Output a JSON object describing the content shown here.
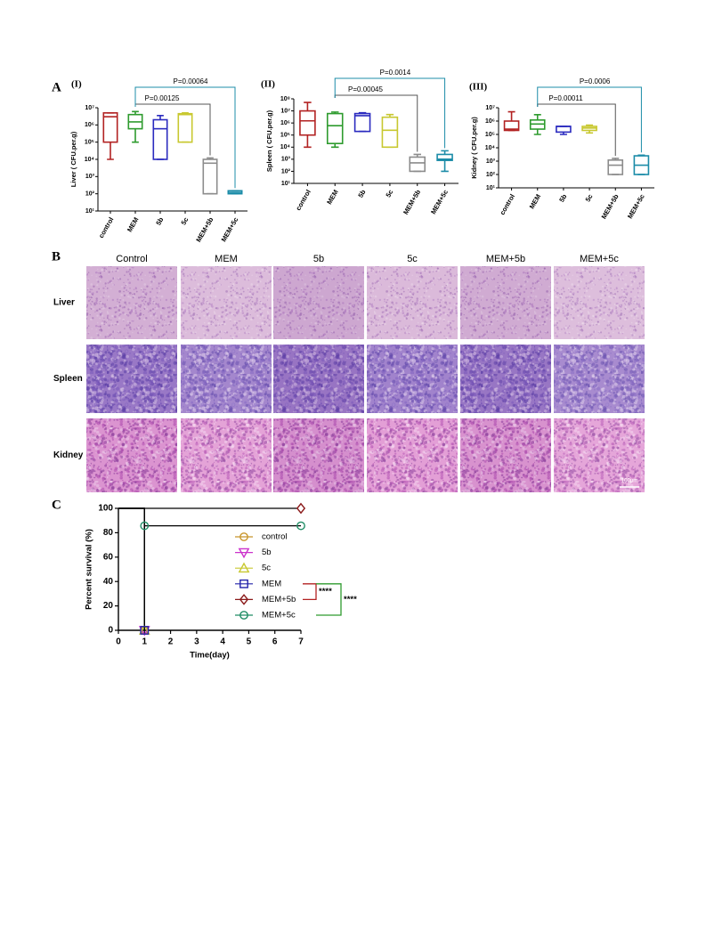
{
  "panel_labels": [
    "A",
    "B",
    "C"
  ],
  "chart_data": [
    {
      "type": "box",
      "title": "(I)",
      "y_label": "Liver ( CFU.per.g)",
      "log_scale": true,
      "categories": [
        "control",
        "MEM",
        "5b",
        "5c",
        "MEM+5b",
        "MEM+5c"
      ],
      "colors": [
        "#b22222",
        "#2e9b2e",
        "#2b2bbf",
        "#c8c830",
        "#8c8c8c",
        "#1c8ca8"
      ],
      "min": [
        10000,
        100000,
        10000,
        100000,
        100,
        100
      ],
      "q1": [
        100000,
        600000,
        10000,
        100000,
        100,
        100
      ],
      "median": [
        3000000,
        1500000,
        600000,
        4000000,
        6000,
        120
      ],
      "q3": [
        5000000,
        4000000,
        2000000,
        4500000,
        10000,
        150
      ],
      "max": [
        5000000,
        6000000,
        3500000,
        5000000,
        12000,
        150
      ],
      "ylim": [
        10,
        10000000
      ],
      "yticks": [
        {
          "value": 10,
          "label": "10¹"
        },
        {
          "value": 100,
          "label": "10²"
        },
        {
          "value": 1000,
          "label": "10³"
        },
        {
          "value": 10000,
          "label": "10⁴"
        },
        {
          "value": 100000,
          "label": "10⁵"
        },
        {
          "value": 1000000,
          "label": "10⁶"
        },
        {
          "value": 10000000,
          "label": "10⁷"
        }
      ],
      "annotations": [
        {
          "text": "P=0.00125",
          "from": "MEM",
          "to": "MEM+5b"
        },
        {
          "text": "P=0.00064",
          "from": "MEM",
          "to": "MEM+5c"
        }
      ]
    },
    {
      "type": "box",
      "title": "(II)",
      "y_label": "Spleen ( CFU.per.g)",
      "log_scale": true,
      "categories": [
        "control",
        "MEM",
        "5b",
        "5c",
        "MEM+5b",
        "MEM+5c"
      ],
      "colors": [
        "#b22222",
        "#2e9b2e",
        "#2b2bbf",
        "#c8c830",
        "#8c8c8c",
        "#1c8ca8"
      ],
      "min": [
        10000,
        10000,
        200000,
        10000,
        100,
        100
      ],
      "q1": [
        100000,
        20000,
        200000,
        10000,
        100,
        800
      ],
      "median": [
        1500000,
        600000,
        4000000,
        250000,
        500,
        1000
      ],
      "q3": [
        10000000,
        6000000,
        6000000,
        3000000,
        1500,
        2500
      ],
      "max": [
        50000000,
        8000000,
        7000000,
        5000000,
        2500,
        5000
      ],
      "ylim": [
        10,
        100000000
      ],
      "yticks": [
        {
          "value": 10,
          "label": "10¹"
        },
        {
          "value": 100,
          "label": "10²"
        },
        {
          "value": 1000,
          "label": "10³"
        },
        {
          "value": 10000,
          "label": "10⁴"
        },
        {
          "value": 100000,
          "label": "10⁵"
        },
        {
          "value": 1000000,
          "label": "10⁶"
        },
        {
          "value": 10000000,
          "label": "10⁷"
        },
        {
          "value": 100000000,
          "label": "10⁸"
        }
      ],
      "annotations": [
        {
          "text": "P=0.00045",
          "from": "MEM",
          "to": "MEM+5b"
        },
        {
          "text": "P=0.0014",
          "from": "MEM",
          "to": "MEM+5c"
        }
      ]
    },
    {
      "type": "box",
      "title": "(III)",
      "y_label": "Kidney ( CFU.per.g)",
      "log_scale": true,
      "categories": [
        "control",
        "MEM",
        "5b",
        "5c",
        "MEM+5b",
        "MEM+5c"
      ],
      "colors": [
        "#b22222",
        "#2e9b2e",
        "#2b2bbf",
        "#c8c830",
        "#8c8c8c",
        "#1c8ca8"
      ],
      "min": [
        200000,
        100000,
        100000,
        130000,
        100,
        100
      ],
      "q1": [
        200000,
        250000,
        150000,
        200000,
        100,
        100
      ],
      "median": [
        250000,
        600000,
        400000,
        300000,
        500,
        500
      ],
      "q3": [
        1000000,
        1200000,
        400000,
        400000,
        1200,
        2500
      ],
      "max": [
        5000000,
        3000000,
        400000,
        500000,
        1600,
        2800
      ],
      "ylim": [
        10,
        10000000
      ],
      "yticks": [
        {
          "value": 10,
          "label": "10¹"
        },
        {
          "value": 100,
          "label": "10²"
        },
        {
          "value": 1000,
          "label": "10³"
        },
        {
          "value": 10000,
          "label": "10⁴"
        },
        {
          "value": 100000,
          "label": "10⁵"
        },
        {
          "value": 1000000,
          "label": "10⁶"
        },
        {
          "value": 10000000,
          "label": "10⁷"
        }
      ],
      "annotations": [
        {
          "text": "P=0.00011",
          "from": "MEM",
          "to": "MEM+5b"
        },
        {
          "text": "P=0.0006",
          "from": "MEM",
          "to": "MEM+5c"
        }
      ]
    },
    {
      "type": "line",
      "step": true,
      "x_label": "Time(day)",
      "y_label": "Percent survival (%)",
      "xlim": [
        0,
        7
      ],
      "xticks": [
        0,
        1,
        2,
        3,
        4,
        5,
        6,
        7
      ],
      "ylim": [
        0,
        100
      ],
      "yticks": [
        0,
        20,
        40,
        60,
        80,
        100
      ],
      "series": [
        {
          "name": "control",
          "color": "#c8952a",
          "marker": "circle",
          "x": [
            0,
            1
          ],
          "values": [
            100,
            0
          ]
        },
        {
          "name": "5b",
          "color": "#cc33cc",
          "marker": "triangle-down",
          "x": [
            0,
            1
          ],
          "values": [
            100,
            0
          ]
        },
        {
          "name": "5c",
          "color": "#c8c830",
          "marker": "triangle-up",
          "x": [
            0,
            1
          ],
          "values": [
            100,
            0
          ]
        },
        {
          "name": "MEM",
          "color": "#2222aa",
          "marker": "square",
          "x": [
            0,
            1
          ],
          "values": [
            100,
            0
          ]
        },
        {
          "name": "MEM+5b",
          "color": "#8b1a1a",
          "marker": "diamond",
          "x": [
            0,
            7
          ],
          "values": [
            100,
            100
          ]
        },
        {
          "name": "MEM+5c",
          "color": "#1e8c64",
          "marker": "circle",
          "x": [
            0,
            1,
            7
          ],
          "values": [
            100,
            85.7,
            85.7
          ]
        }
      ],
      "annotations": [
        {
          "text": "****",
          "from": "MEM",
          "to": "MEM+5b",
          "color": "#b22222"
        },
        {
          "text": "****",
          "from": "MEM",
          "to": "MEM+5c",
          "color": "#2e9b2e"
        }
      ]
    }
  ],
  "histology": {
    "columns": [
      "Control",
      "MEM",
      "5b",
      "5c",
      "MEM+5b",
      "MEM+5c"
    ],
    "rows": [
      "Liver",
      "Spleen",
      "Kidney"
    ],
    "scale_bar": "100μm"
  }
}
